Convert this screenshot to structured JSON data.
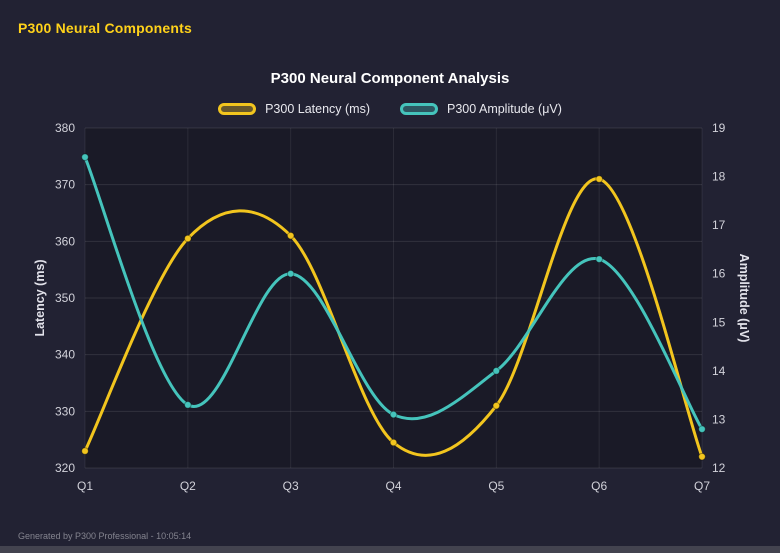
{
  "header": {
    "title": "P300 Neural Components"
  },
  "footer": {
    "text": "Generated by P300 Professional - 10:05:14"
  },
  "chart_data": {
    "type": "line",
    "title": "P300 Neural Component Analysis",
    "smooth": true,
    "grid": true,
    "legend_position": "top",
    "categories": [
      "Q1",
      "Q2",
      "Q3",
      "Q4",
      "Q5",
      "Q6",
      "Q7"
    ],
    "series": [
      {
        "name": "P300 Latency (ms)",
        "axis": "left",
        "color": "#f2c51e",
        "values": [
          323,
          360.5,
          361,
          324.5,
          331,
          371,
          322
        ]
      },
      {
        "name": "P300 Amplitude (μV)",
        "axis": "right",
        "color": "#45c4bc",
        "values": [
          18.4,
          13.3,
          16.0,
          13.1,
          14.0,
          16.3,
          12.8
        ]
      }
    ],
    "left_axis": {
      "label": "Latency (ms)",
      "min": 320,
      "max": 380,
      "ticks": [
        320,
        330,
        340,
        350,
        360,
        370,
        380
      ]
    },
    "right_axis": {
      "label": "Amplitude (μV)",
      "min": 12,
      "max": 19,
      "ticks": [
        12,
        13,
        14,
        15,
        16,
        17,
        18,
        19
      ]
    }
  }
}
